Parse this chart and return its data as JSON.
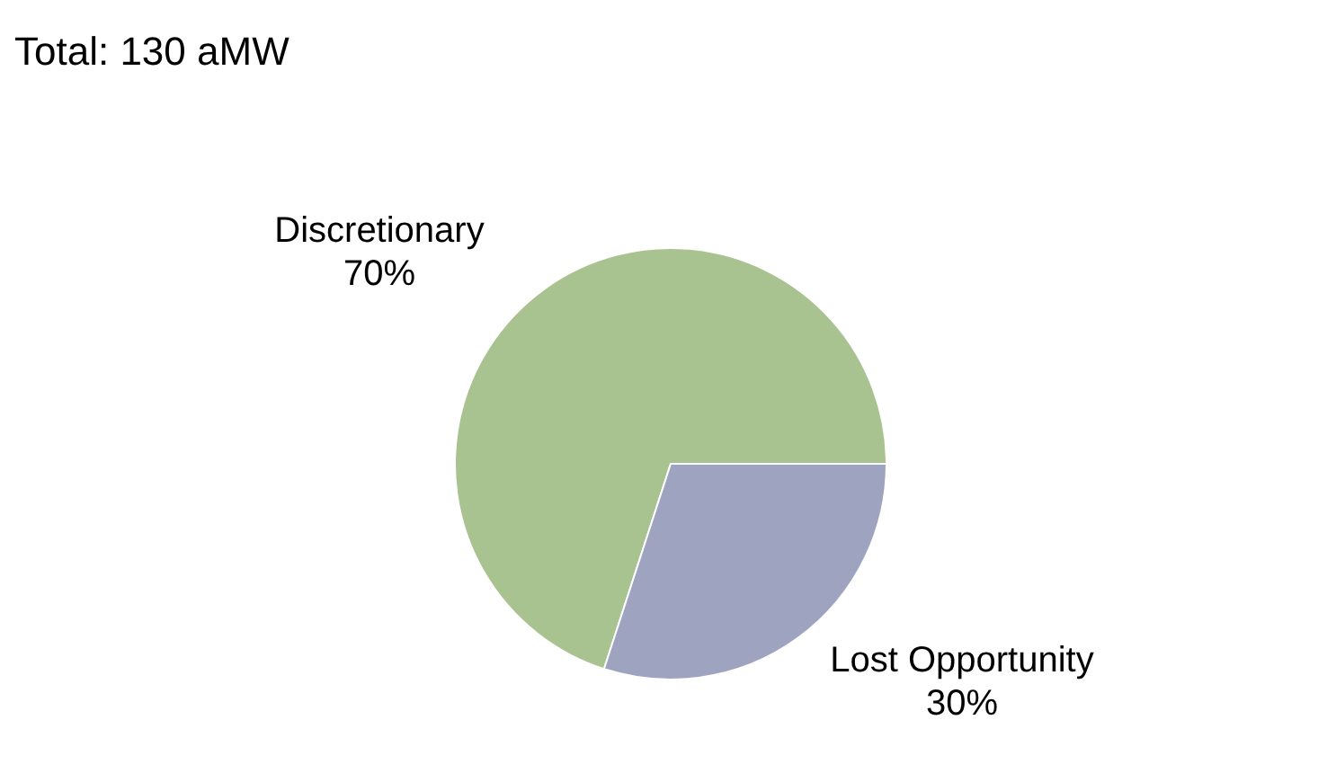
{
  "chart_data": {
    "type": "pie",
    "title": "Total: 130 aMW",
    "categories": [
      "Discretionary",
      "Lost Opportunity"
    ],
    "values": [
      70,
      30
    ],
    "colors": [
      "#a8c290",
      "#9ea3bf"
    ],
    "value_labels": [
      "70%",
      "30%"
    ]
  }
}
